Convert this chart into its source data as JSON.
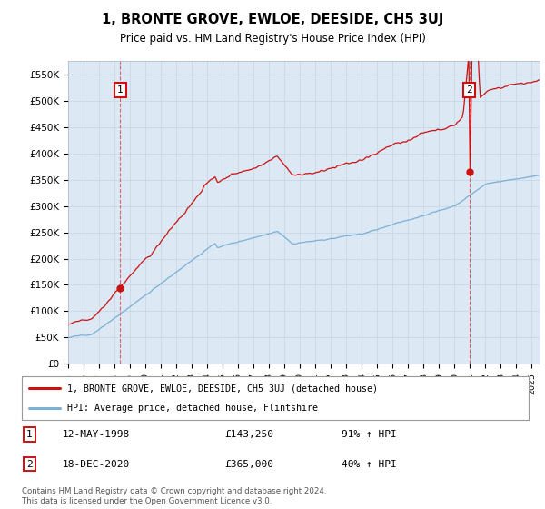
{
  "title": "1, BRONTE GROVE, EWLOE, DEESIDE, CH5 3UJ",
  "subtitle": "Price paid vs. HM Land Registry's House Price Index (HPI)",
  "ylim": [
    0,
    575000
  ],
  "yticks": [
    0,
    50000,
    100000,
    150000,
    200000,
    250000,
    300000,
    350000,
    400000,
    450000,
    500000,
    550000
  ],
  "ytick_labels": [
    "£0",
    "£50K",
    "£100K",
    "£150K",
    "£200K",
    "£250K",
    "£300K",
    "£350K",
    "£400K",
    "£450K",
    "£500K",
    "£550K"
  ],
  "hpi_color": "#7bafd4",
  "price_color": "#cc1111",
  "grid_color": "#c8d8e8",
  "plot_bg_color": "#dce8f4",
  "sale1_x": 1998.37,
  "sale1_price": 143250,
  "sale2_x": 2020.96,
  "sale2_price": 365000,
  "legend_line1": "1, BRONTE GROVE, EWLOE, DEESIDE, CH5 3UJ (detached house)",
  "legend_line2": "HPI: Average price, detached house, Flintshire",
  "footnote": "Contains HM Land Registry data © Crown copyright and database right 2024.\nThis data is licensed under the Open Government Licence v3.0.",
  "xstart": 1995,
  "xend": 2025.5
}
